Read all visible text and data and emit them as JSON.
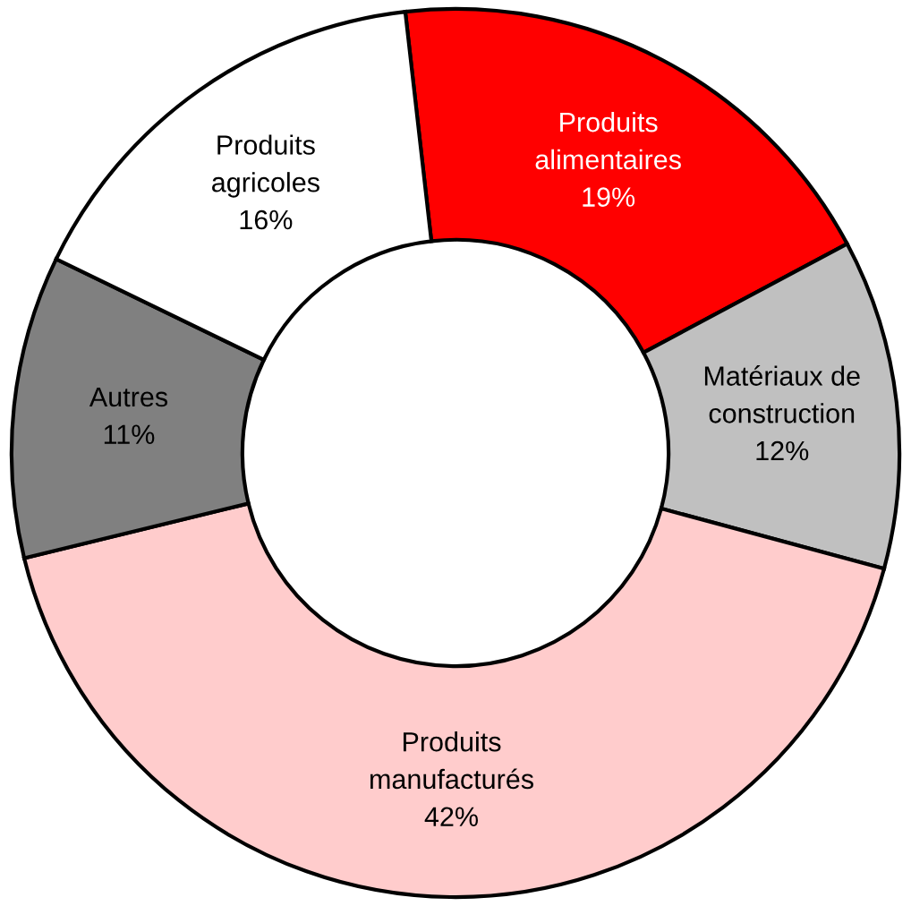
{
  "chart_data": {
    "type": "donut",
    "categories": [
      "Produits\nalimentaires",
      "Matériaux de\nconstruction",
      "Produits\nmanufacturés",
      "Autres",
      "Produits\nagricoles"
    ],
    "values": [
      19,
      12,
      42,
      11,
      16
    ],
    "value_labels": [
      "19%",
      "12%",
      "42%",
      "11%",
      "16%"
    ],
    "colors": [
      "#ff0000",
      "#c0c0c0",
      "#ffcccc",
      "#808080",
      "#ffffff"
    ]
  }
}
